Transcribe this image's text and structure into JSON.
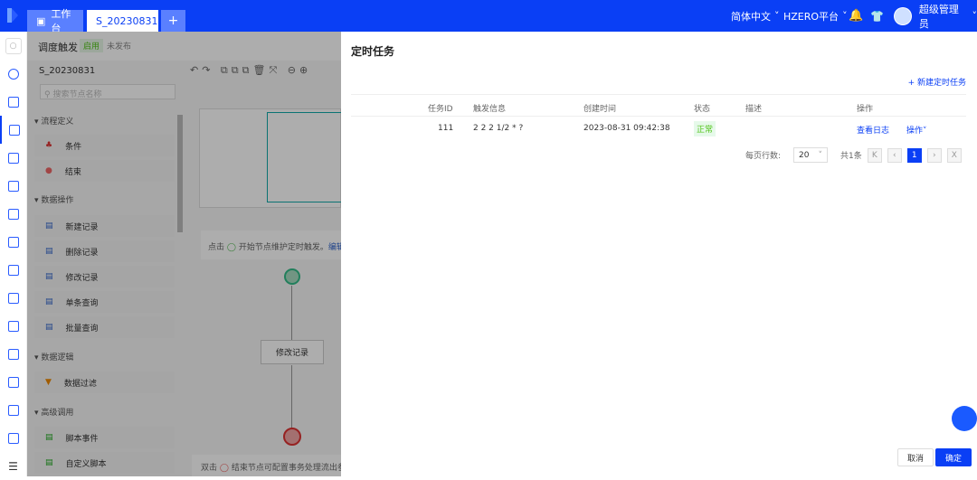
{
  "header": {
    "tabs": [
      {
        "label": "工作台",
        "icon": "monitor-icon"
      },
      {
        "label": "S_20230831",
        "close": "×"
      },
      {
        "label": "+"
      }
    ],
    "language": "简体中文",
    "platform": "HZERO平台",
    "user": "超级管理员"
  },
  "editor": {
    "title": "调度触发",
    "status": "启用",
    "publish": "未发布",
    "flow_name": "S_20230831",
    "search_placeholder": "搜索节点名称",
    "groups": [
      {
        "label": "流程定义",
        "items": [
          "条件",
          "结束"
        ]
      },
      {
        "label": "数据操作",
        "items": [
          "新建记录",
          "删除记录",
          "修改记录",
          "单条查询",
          "批量查询"
        ]
      },
      {
        "label": "数据逻辑",
        "items": [
          "数据过滤"
        ]
      },
      {
        "label": "高级调用",
        "items": [
          "脚本事件",
          "自定义脚本"
        ]
      }
    ],
    "hint_start": "点击",
    "hint_start_text": "开始节点维护定时触发。",
    "hint_edit": "编辑",
    "canvas_node": "修改记录",
    "hint_end": "双击",
    "hint_end_text": "结束节点可配置事务处理流出参"
  },
  "drawer": {
    "title": "定时任务",
    "new_button": "+ 新建定时任务",
    "columns": [
      "任务ID",
      "触发信息",
      "创建时间",
      "状态",
      "描述",
      "操作"
    ],
    "rows": [
      {
        "id": "111",
        "trigger": "2 2 2 1/2 * ?",
        "created": "2023-08-31 09:42:38",
        "status": "正常",
        "desc": "",
        "view_log": "查看日志",
        "actions": "操作"
      }
    ],
    "pagination": {
      "page_size_label": "每页行数:",
      "page_size": "20",
      "total": "共1条",
      "current": "1"
    },
    "cancel": "取消",
    "ok": "确定"
  },
  "colors": {
    "brand": "#0a3ff5",
    "success": "#52c41a"
  }
}
